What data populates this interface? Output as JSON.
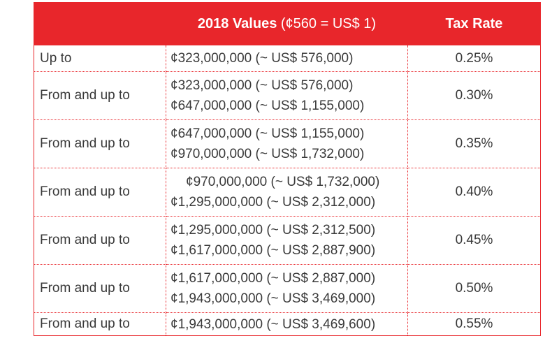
{
  "table": {
    "headers": {
      "range": "",
      "values_main": "2018 Values",
      "values_note": "(¢560 = US$ 1)",
      "rate": "Tax Rate"
    },
    "rows": [
      {
        "label": "Up to",
        "line1": "¢323,000,000 (~ US$ 576,000)",
        "line2": "",
        "rate": "0.25%"
      },
      {
        "label": "From and up to",
        "line1": "¢323,000,000 (~ US$ 576,000)",
        "line2": "¢647,000,000 (~ US$ 1,155,000)",
        "rate": "0.30%"
      },
      {
        "label": "From and up to",
        "line1": "¢647,000,000 (~ US$ 1,155,000)",
        "line2": "¢970,000,000 (~ US$ 1,732,000)",
        "rate": "0.35%"
      },
      {
        "label": "From and up to",
        "line1": "¢970,000,000 (~ US$ 1,732,000)",
        "line2": "¢1,295,000,000 (~ US$ 2,312,000)",
        "rate": "0.40%"
      },
      {
        "label": "From and up to",
        "line1": "¢1,295,000,000 (~ US$ 2,312,500)",
        "line2": "¢1,617,000,000 (~ US$ 2,887,900)",
        "rate": "0.45%"
      },
      {
        "label": "From and up to",
        "line1": "¢1,617,000,000 (~ US$ 2,887,000)",
        "line2": "¢1,943,000,000 (~ US$ 3,469,000)",
        "rate": "0.50%"
      },
      {
        "label": "From and up to",
        "line1": "¢1,943,000,000 (~ US$ 3,469,600)",
        "line2": "",
        "rate": "0.55%"
      }
    ]
  },
  "colors": {
    "header_background": "#e8262b",
    "header_text": "#ffffff",
    "border": "#e8262b",
    "body_text": "#3a3a3a"
  }
}
